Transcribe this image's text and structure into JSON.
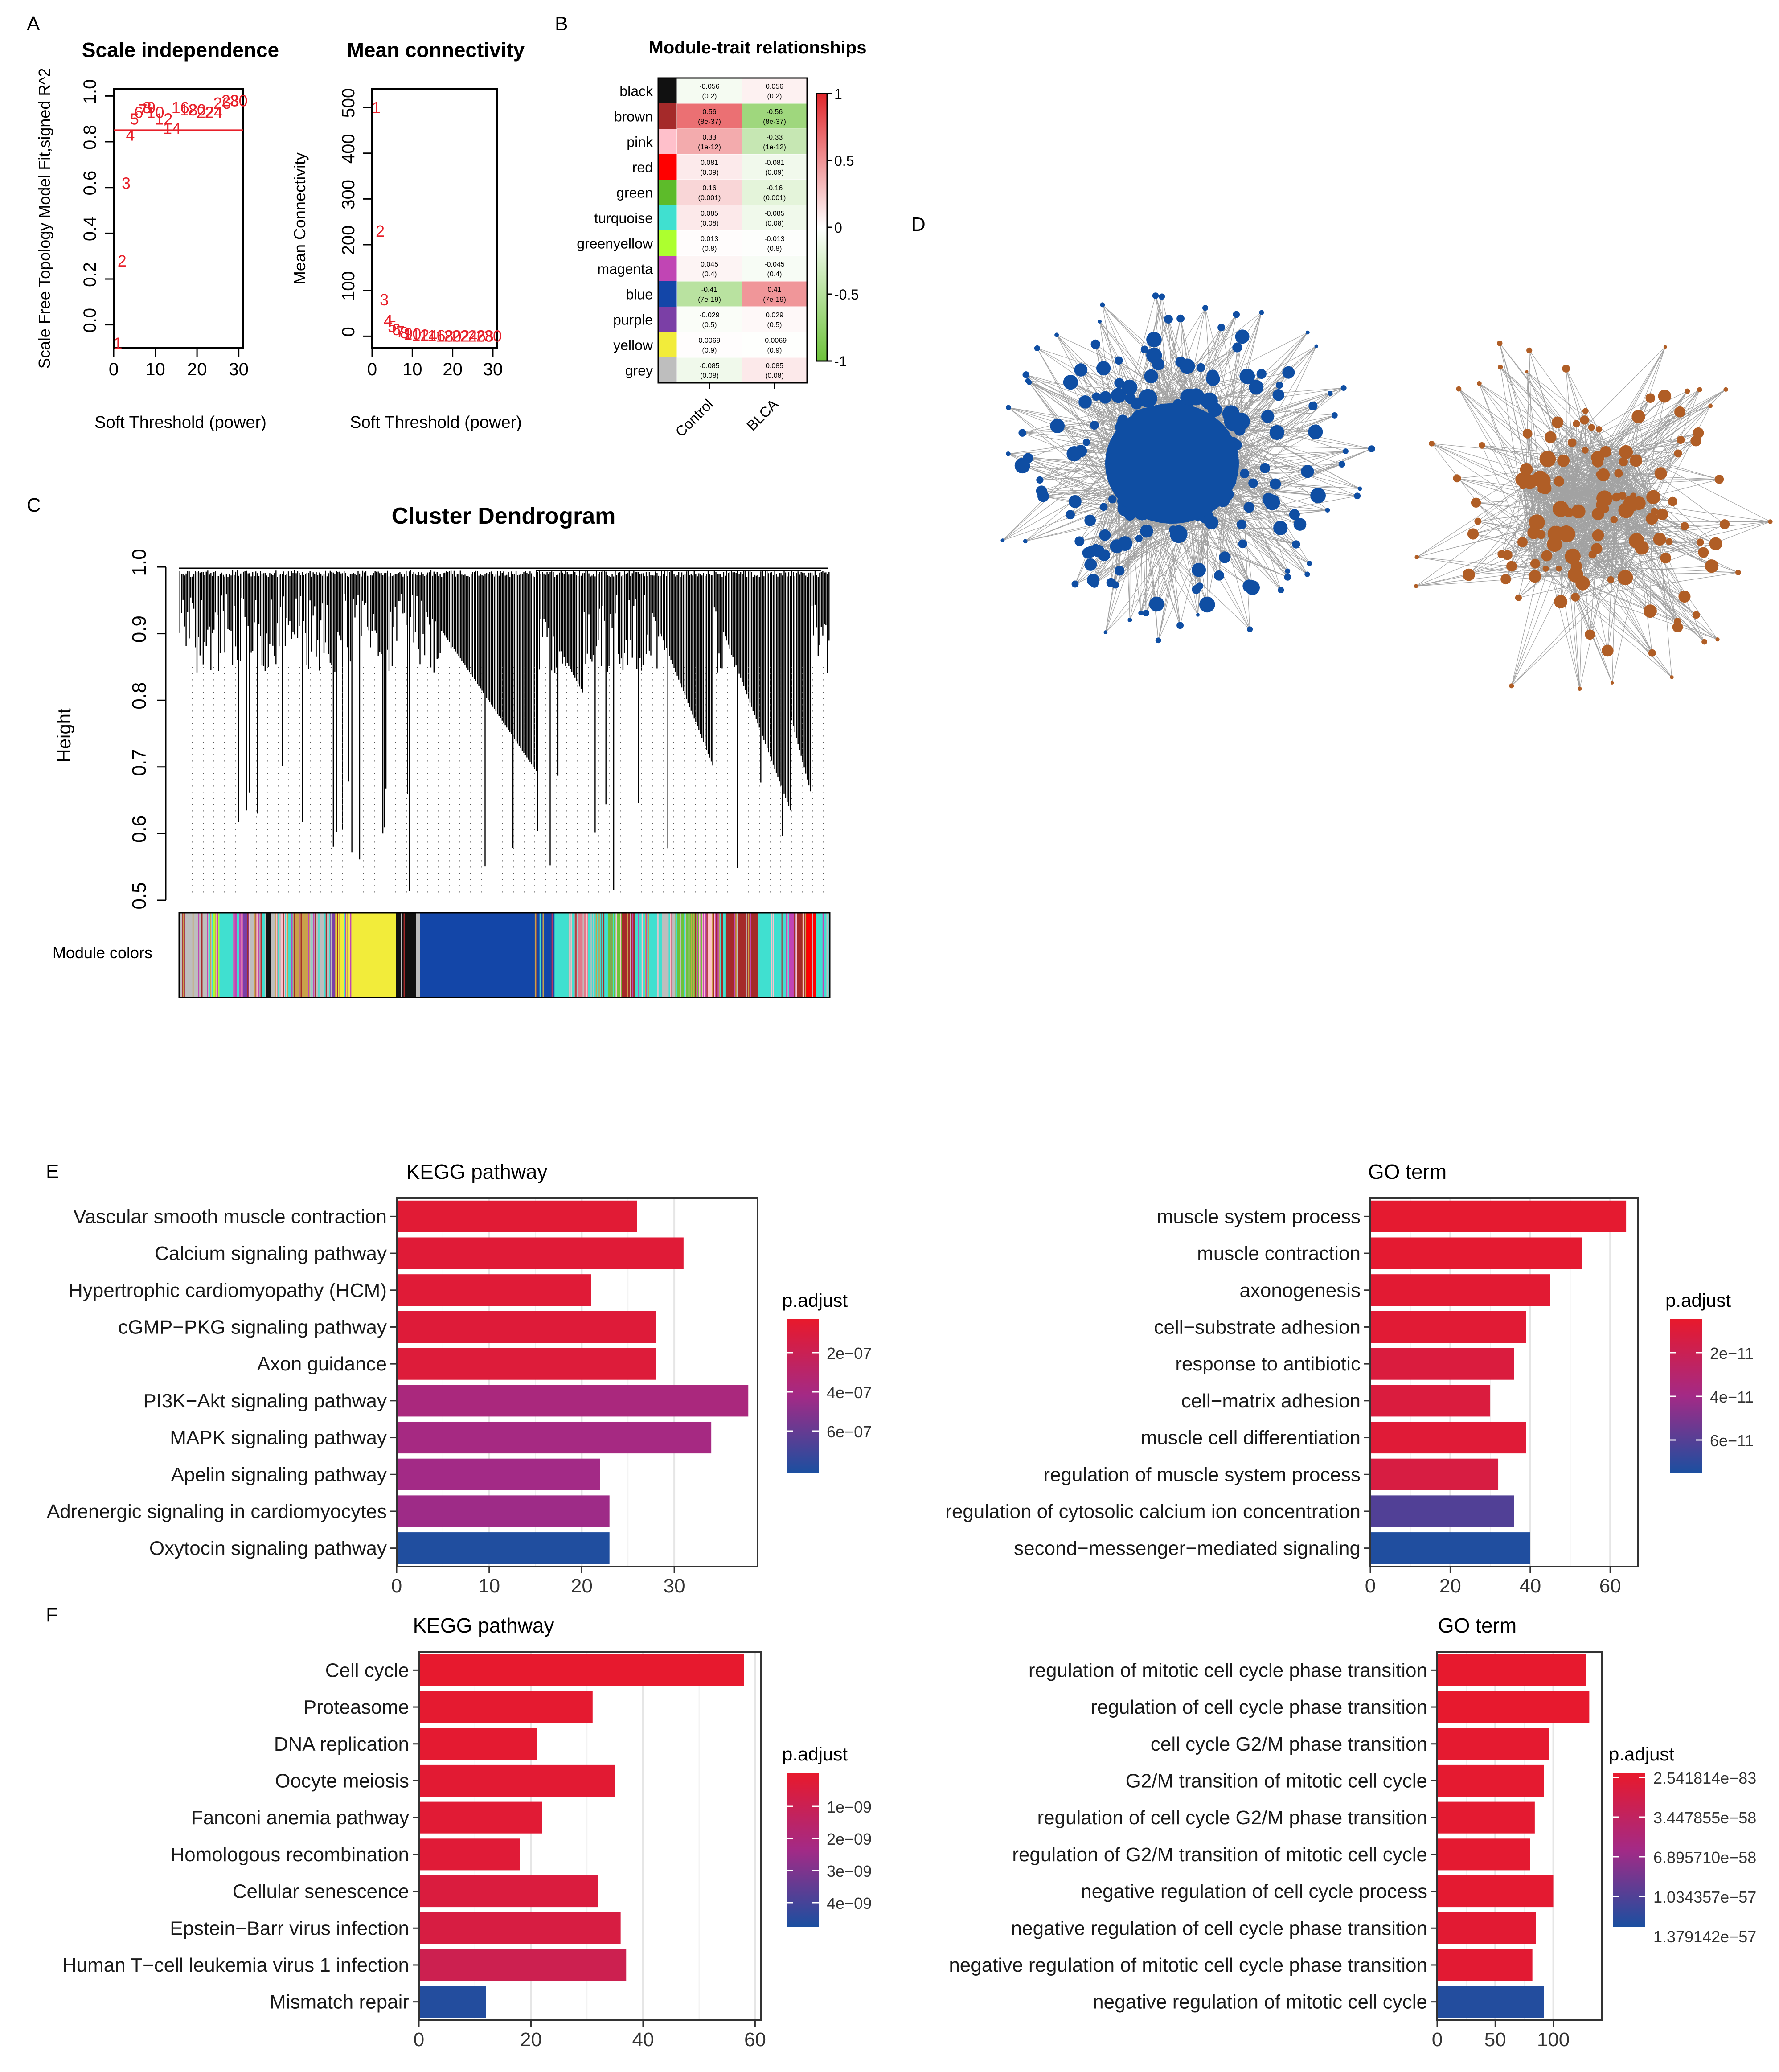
{
  "panel_letters": [
    "A",
    "B",
    "C",
    "D",
    "E",
    "F"
  ],
  "colors": {
    "threshold_line": "#e8202a",
    "point_label": "#e8202a",
    "network_blue": "#0f4ea3",
    "network_brown": "#b05e26",
    "edge": "#555555",
    "padj_top": "#e8192c",
    "padj_mid": "#9c2a8e",
    "padj_bottom": "#1b4fa0",
    "trait_pos": "#e0262b",
    "trait_neg": "#6dc23a"
  },
  "chart_data": [
    {
      "id": "scale-independence",
      "type": "scatter",
      "title": "Scale independence",
      "xlabel": "Soft Threshold (power)",
      "ylabel": "Scale Free Topology Model Fit,signed R^2",
      "xlim": [
        0,
        31
      ],
      "ylim": [
        -0.1,
        1.03
      ],
      "xticks": [
        "0",
        "10",
        "20",
        "30"
      ],
      "yticks": [
        "0.0",
        "0.2",
        "0.4",
        "0.6",
        "0.8",
        "1.0"
      ],
      "threshold": 0.85,
      "points": [
        {
          "label": "1",
          "x": 1,
          "y": -0.08
        },
        {
          "label": "2",
          "x": 2,
          "y": 0.28
        },
        {
          "label": "3",
          "x": 3,
          "y": 0.62
        },
        {
          "label": "4",
          "x": 4,
          "y": 0.83
        },
        {
          "label": "5",
          "x": 5,
          "y": 0.9
        },
        {
          "label": "6",
          "x": 6,
          "y": 0.93
        },
        {
          "label": "7",
          "x": 7,
          "y": 0.94
        },
        {
          "label": "8",
          "x": 8,
          "y": 0.95
        },
        {
          "label": "9",
          "x": 9,
          "y": 0.95
        },
        {
          "label": "10",
          "x": 10,
          "y": 0.93
        },
        {
          "label": "12",
          "x": 12,
          "y": 0.9
        },
        {
          "label": "14",
          "x": 14,
          "y": 0.86
        },
        {
          "label": "16",
          "x": 16,
          "y": 0.95
        },
        {
          "label": "18",
          "x": 18,
          "y": 0.94
        },
        {
          "label": "20",
          "x": 20,
          "y": 0.94
        },
        {
          "label": "22",
          "x": 22,
          "y": 0.93
        },
        {
          "label": "24",
          "x": 24,
          "y": 0.93
        },
        {
          "label": "26",
          "x": 26,
          "y": 0.97
        },
        {
          "label": "28",
          "x": 28,
          "y": 0.98
        },
        {
          "label": "30",
          "x": 30,
          "y": 0.98
        }
      ]
    },
    {
      "id": "mean-connectivity",
      "type": "scatter",
      "title": "Mean connectivity",
      "xlabel": "Soft Threshold (power)",
      "ylabel": "Mean Connectivity",
      "xlim": [
        0,
        31
      ],
      "ylim": [
        -25,
        540
      ],
      "xticks": [
        "0",
        "10",
        "20",
        "30"
      ],
      "yticks": [
        "0",
        "100",
        "200",
        "300",
        "400",
        "500"
      ],
      "points": [
        {
          "label": "1",
          "x": 1,
          "y": 500
        },
        {
          "label": "2",
          "x": 2,
          "y": 230
        },
        {
          "label": "3",
          "x": 3,
          "y": 80
        },
        {
          "label": "4",
          "x": 4,
          "y": 35
        },
        {
          "label": "5",
          "x": 5,
          "y": 22
        },
        {
          "label": "6",
          "x": 6,
          "y": 15
        },
        {
          "label": "7",
          "x": 7,
          "y": 10
        },
        {
          "label": "8",
          "x": 8,
          "y": 8
        },
        {
          "label": "9",
          "x": 9,
          "y": 6
        },
        {
          "label": "10",
          "x": 10,
          "y": 5
        },
        {
          "label": "12",
          "x": 12,
          "y": 3
        },
        {
          "label": "14",
          "x": 14,
          "y": 2
        },
        {
          "label": "16",
          "x": 16,
          "y": 2
        },
        {
          "label": "18",
          "x": 18,
          "y": 1
        },
        {
          "label": "20",
          "x": 20,
          "y": 1
        },
        {
          "label": "22",
          "x": 22,
          "y": 1
        },
        {
          "label": "24",
          "x": 24,
          "y": 1
        },
        {
          "label": "26",
          "x": 26,
          "y": 1
        },
        {
          "label": "28",
          "x": 28,
          "y": 1
        },
        {
          "label": "30",
          "x": 30,
          "y": 1
        }
      ]
    },
    {
      "id": "module-trait",
      "type": "heatmap",
      "title": "Module-trait relationships",
      "columns": [
        "Control",
        "BLCA"
      ],
      "legend_ticks": [
        "1",
        "0.5",
        "0",
        "-0.5",
        "-1"
      ],
      "rows": [
        {
          "module": "black",
          "color": "#111111",
          "values": [
            -0.056,
            0.056
          ],
          "cells": [
            [
              "-0.056",
              "(0.2)"
            ],
            [
              "0.056",
              "(0.2)"
            ]
          ]
        },
        {
          "module": "brown",
          "color": "#a52a2a",
          "values": [
            0.56,
            -0.56
          ],
          "cells": [
            [
              "0.56",
              "(8e-37)"
            ],
            [
              "-0.56",
              "(8e-37)"
            ]
          ]
        },
        {
          "module": "pink",
          "color": "#ffc0cb",
          "values": [
            0.33,
            -0.33
          ],
          "cells": [
            [
              "0.33",
              "(1e-12)"
            ],
            [
              "-0.33",
              "(1e-12)"
            ]
          ]
        },
        {
          "module": "red",
          "color": "#ff0000",
          "values": [
            0.081,
            -0.081
          ],
          "cells": [
            [
              "0.081",
              "(0.09)"
            ],
            [
              "-0.081",
              "(0.09)"
            ]
          ]
        },
        {
          "module": "green",
          "color": "#5dbb2a",
          "values": [
            0.16,
            -0.16
          ],
          "cells": [
            [
              "0.16",
              "(0.001)"
            ],
            [
              "-0.16",
              "(0.001)"
            ]
          ]
        },
        {
          "module": "turquoise",
          "color": "#40e0d0",
          "values": [
            0.085,
            -0.085
          ],
          "cells": [
            [
              "0.085",
              "(0.08)"
            ],
            [
              "-0.085",
              "(0.08)"
            ]
          ]
        },
        {
          "module": "greenyellow",
          "color": "#adff2f",
          "values": [
            0.013,
            -0.013
          ],
          "cells": [
            [
              "0.013",
              "(0.8)"
            ],
            [
              "-0.013",
              "(0.8)"
            ]
          ]
        },
        {
          "module": "magenta",
          "color": "#c145b4",
          "values": [
            0.045,
            -0.045
          ],
          "cells": [
            [
              "0.045",
              "(0.4)"
            ],
            [
              "-0.045",
              "(0.4)"
            ]
          ]
        },
        {
          "module": "blue",
          "color": "#1346a8",
          "values": [
            -0.41,
            0.41
          ],
          "cells": [
            [
              "-0.41",
              "(7e-19)"
            ],
            [
              "0.41",
              "(7e-19)"
            ]
          ]
        },
        {
          "module": "purple",
          "color": "#7b3fa6",
          "values": [
            -0.029,
            0.029
          ],
          "cells": [
            [
              "-0.029",
              "(0.5)"
            ],
            [
              "0.029",
              "(0.5)"
            ]
          ]
        },
        {
          "module": "yellow",
          "color": "#f2ec3a",
          "values": [
            0.0069,
            -0.0069
          ],
          "cells": [
            [
              "0.0069",
              "(0.9)"
            ],
            [
              "-0.0069",
              "(0.9)"
            ]
          ]
        },
        {
          "module": "grey",
          "color": "#bebebe",
          "values": [
            -0.085,
            0.085
          ],
          "cells": [
            [
              "-0.085",
              "(0.08)"
            ],
            [
              "0.085",
              "(0.08)"
            ]
          ]
        }
      ]
    },
    {
      "id": "cluster-dendrogram",
      "type": "dendrogram",
      "title": "Cluster Dendrogram",
      "ylabel": "Height",
      "ylim": [
        0.5,
        1.0
      ],
      "yticks": [
        "0.5",
        "0.6",
        "0.7",
        "0.8",
        "0.9",
        "1.0"
      ],
      "color_bar_label": "Module colors",
      "color_segments": [
        {
          "color": "#bebebe",
          "w": 5
        },
        {
          "color": "#adff2f",
          "w": 1
        },
        {
          "color": "#40e0d0",
          "w": 2
        },
        {
          "color": "#c145b4",
          "w": 1.5
        },
        {
          "color": "#7b3fa6",
          "w": 1
        },
        {
          "color": "#bebebe",
          "w": 1.5
        },
        {
          "color": "#40e0d0",
          "w": 1
        },
        {
          "color": "#111111",
          "w": 0.7
        },
        {
          "color": "#bebebe",
          "w": 1.5
        },
        {
          "color": "#ffc0cb",
          "w": 0.8
        },
        {
          "color": "#40e0d0",
          "w": 1
        },
        {
          "color": "#c9a24b",
          "w": 2.5
        },
        {
          "color": "#bebebe",
          "w": 3
        },
        {
          "color": "#7b3fa6",
          "w": 0.8
        },
        {
          "color": "#f2ec3a",
          "w": 9
        },
        {
          "color": "#111111",
          "w": 3
        },
        {
          "color": "#bebebe",
          "w": 0.6
        },
        {
          "color": "#1346a8",
          "w": 20
        },
        {
          "color": "#40e0d0",
          "w": 3
        },
        {
          "color": "#e07a8a",
          "w": 2
        },
        {
          "color": "#40e0d0",
          "w": 3
        },
        {
          "color": "#6dc23a",
          "w": 2
        },
        {
          "color": "#a52a2a",
          "w": 2
        },
        {
          "color": "#40e0d0",
          "w": 4
        },
        {
          "color": "#bebebe",
          "w": 2
        },
        {
          "color": "#6dc23a",
          "w": 4
        },
        {
          "color": "#ffc0cb",
          "w": 1.5
        },
        {
          "color": "#a52a2a",
          "w": 7
        },
        {
          "color": "#40e0d0",
          "w": 4
        },
        {
          "color": "#c145b4",
          "w": 1.5
        },
        {
          "color": "#a52a2a",
          "w": 1.5
        },
        {
          "color": "#ff0000",
          "w": 1.5
        },
        {
          "color": "#40e0d0",
          "w": 2
        }
      ]
    },
    {
      "id": "network",
      "type": "network",
      "modules": [
        {
          "name": "blue",
          "color": "#0f4ea3"
        },
        {
          "name": "brown",
          "color": "#b05e26"
        }
      ]
    },
    {
      "id": "E-kegg",
      "type": "bar",
      "orientation": "horizontal",
      "title": "KEGG pathway",
      "categories": [
        "Vascular smooth muscle contraction",
        "Calcium signaling pathway",
        "Hypertrophic cardiomyopathy (HCM)",
        "cGMP−PKG signaling pathway",
        "Axon guidance",
        "PI3K−Akt signaling pathway",
        "MAPK signaling pathway",
        "Apelin signaling pathway",
        "Adrenergic signaling in cardiomyocytes",
        "Oxytocin signaling pathway"
      ],
      "values": [
        26,
        31,
        21,
        28,
        28,
        38,
        34,
        22,
        23,
        23
      ],
      "padj_frac": [
        0.05,
        0.06,
        0.06,
        0.07,
        0.08,
        0.45,
        0.48,
        0.5,
        0.52,
        0.98
      ],
      "xlim": [
        0,
        39
      ],
      "xticks": [
        0,
        10,
        20,
        30
      ],
      "legend_title": "p.adjust",
      "legend_ticks": [
        "2e−07",
        "4e−07",
        "6e−07"
      ]
    },
    {
      "id": "E-go",
      "type": "bar",
      "orientation": "horizontal",
      "title": "GO term",
      "categories": [
        "muscle system process",
        "muscle contraction",
        "axonogenesis",
        "cell−substrate adhesion",
        "response to antibiotic",
        "cell−matrix adhesion",
        "muscle cell differentiation",
        "regulation of muscle system process",
        "regulation of cytosolic calcium ion concentration",
        "second−messenger−mediated signaling"
      ],
      "values": [
        64,
        53,
        45,
        39,
        36,
        30,
        39,
        32,
        36,
        40
      ],
      "padj_frac": [
        0.02,
        0.03,
        0.04,
        0.05,
        0.1,
        0.1,
        0.06,
        0.12,
        0.8,
        0.98
      ],
      "xlim": [
        0,
        67
      ],
      "xticks": [
        0,
        20,
        40,
        60
      ],
      "legend_title": "p.adjust",
      "legend_ticks": [
        "2e−11",
        "4e−11",
        "6e−11"
      ]
    },
    {
      "id": "F-kegg",
      "type": "bar",
      "orientation": "horizontal",
      "title": "KEGG pathway",
      "categories": [
        "Cell cycle",
        "Proteasome",
        "DNA replication",
        "Oocyte meiosis",
        "Fanconi anemia pathway",
        "Homologous recombination",
        "Cellular senescence",
        "Epstein−Barr virus infection",
        "Human T−cell leukemia virus 1 infection",
        "Mismatch repair"
      ],
      "values": [
        58,
        31,
        21,
        35,
        22,
        18,
        32,
        36,
        37,
        12
      ],
      "padj_frac": [
        0.01,
        0.02,
        0.03,
        0.04,
        0.05,
        0.06,
        0.1,
        0.12,
        0.2,
        0.97
      ],
      "xlim": [
        0,
        61
      ],
      "xticks": [
        0,
        20,
        40,
        60
      ],
      "legend_title": "p.adjust",
      "legend_ticks": [
        "1e−09",
        "2e−09",
        "3e−09",
        "4e−09"
      ]
    },
    {
      "id": "F-go",
      "type": "bar",
      "orientation": "horizontal",
      "title": "GO term",
      "categories": [
        "regulation of mitotic cell cycle phase transition",
        "regulation of cell cycle phase transition",
        "cell cycle G2/M phase transition",
        "G2/M transition of mitotic cell cycle",
        "regulation of cell cycle G2/M phase transition",
        "regulation of G2/M transition of mitotic cell cycle",
        "negative regulation of cell cycle process",
        "negative regulation of cell cycle phase transition",
        "negative regulation of mitotic cell cycle phase transition",
        "negative regulation of mitotic cell cycle"
      ],
      "values": [
        128,
        131,
        96,
        92,
        84,
        80,
        100,
        85,
        82,
        92
      ],
      "padj_frac": [
        0.01,
        0.01,
        0.02,
        0.02,
        0.03,
        0.03,
        0.03,
        0.04,
        0.04,
        0.97
      ],
      "xlim": [
        0,
        142
      ],
      "xticks": [
        0,
        50,
        100
      ],
      "legend_title": "p.adjust",
      "legend_ticks": [
        "2.541814e−83",
        "3.447855e−58",
        "6.895710e−58",
        "1.034357e−57",
        "1.379142e−57"
      ]
    }
  ]
}
